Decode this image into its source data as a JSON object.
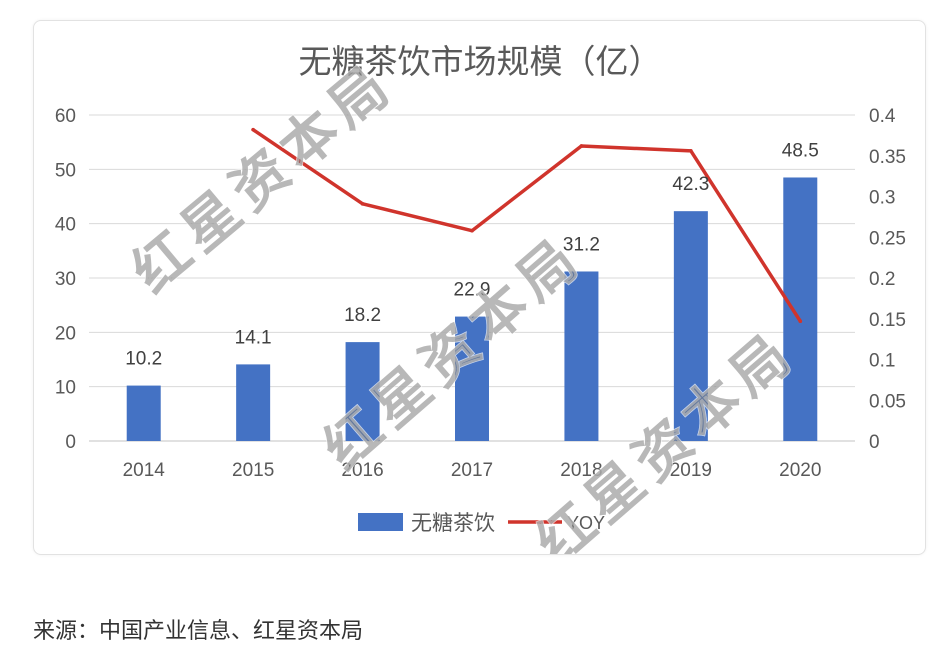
{
  "chart_data": {
    "type": "bar",
    "title": "无糖茶饮市场规模（亿）",
    "categories": [
      "2014",
      "2015",
      "2016",
      "2017",
      "2018",
      "2019",
      "2020"
    ],
    "series": [
      {
        "name": "无糖茶饮",
        "type": "bar",
        "axis": "left",
        "color": "#4472c4",
        "values": [
          10.2,
          14.1,
          18.2,
          22.9,
          31.2,
          42.3,
          48.5
        ]
      },
      {
        "name": "YOY",
        "type": "line",
        "axis": "right",
        "color": "#d0342c",
        "values": [
          null,
          0.382,
          0.291,
          0.258,
          0.362,
          0.356,
          0.147
        ]
      }
    ],
    "y_left": {
      "min": 0,
      "max": 60,
      "tick_labels": [
        "0",
        "10",
        "20",
        "30",
        "40",
        "50",
        "60"
      ]
    },
    "y_right": {
      "min": 0,
      "max": 0.4,
      "tick_labels": [
        "0",
        "0.05",
        "0.1",
        "0.15",
        "0.2",
        "0.25",
        "0.3",
        "0.35",
        "0.4"
      ]
    },
    "data_labels": true,
    "grid": true,
    "legend": "bottom"
  },
  "watermark": "红星资本局",
  "source_note": "来源：中国产业信息、红星资本局"
}
